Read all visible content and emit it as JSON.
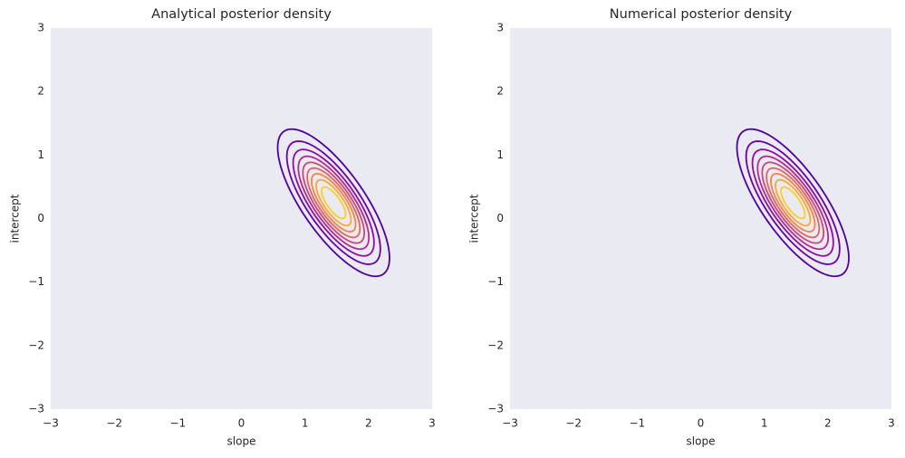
{
  "chart_data": [
    {
      "type": "contour",
      "title": "Analytical posterior density",
      "xlabel": "slope",
      "ylabel": "intercept",
      "xlim": [
        -3,
        3
      ],
      "ylim": [
        -3,
        3
      ],
      "xticks": [
        {
          "value": -3,
          "label": "−3"
        },
        {
          "value": -2,
          "label": "−2"
        },
        {
          "value": -1,
          "label": "−1"
        },
        0,
        1,
        2,
        3
      ],
      "yticks": [
        {
          "value": -3,
          "label": "−3"
        },
        {
          "value": -2,
          "label": "−2"
        },
        {
          "value": -1,
          "label": "−1"
        },
        0,
        1,
        2,
        3
      ],
      "mean": [
        1.45,
        0.25
      ],
      "std": [
        0.41,
        0.54
      ],
      "corr": -0.75,
      "contours": [
        {
          "level": 0.1,
          "color": "#4c02a1"
        },
        {
          "level": 0.2,
          "color": "#6a00a8"
        },
        {
          "level": 0.3,
          "color": "#8f0da4"
        },
        {
          "level": 0.4,
          "color": "#b12a90"
        },
        {
          "level": 0.5,
          "color": "#cc4778"
        },
        {
          "level": 0.6,
          "color": "#e16462"
        },
        {
          "level": 0.7,
          "color": "#f2844b"
        },
        {
          "level": 0.8,
          "color": "#fca636"
        },
        {
          "level": 0.9,
          "color": "#fcce25"
        }
      ]
    },
    {
      "type": "contour",
      "title": "Numerical posterior density",
      "xlabel": "slope",
      "ylabel": "intercept",
      "xlim": [
        -3,
        3
      ],
      "ylim": [
        -3,
        3
      ],
      "xticks": [
        {
          "value": -3,
          "label": "−3"
        },
        {
          "value": -2,
          "label": "−2"
        },
        {
          "value": -1,
          "label": "−1"
        },
        0,
        1,
        2,
        3
      ],
      "yticks": [
        {
          "value": -3,
          "label": "−3"
        },
        {
          "value": -2,
          "label": "−2"
        },
        {
          "value": -1,
          "label": "−1"
        },
        0,
        1,
        2,
        3
      ],
      "mean": [
        1.45,
        0.25
      ],
      "std": [
        0.41,
        0.54
      ],
      "corr": -0.75,
      "contours": [
        {
          "level": 0.1,
          "color": "#4c02a1"
        },
        {
          "level": 0.2,
          "color": "#6a00a8"
        },
        {
          "level": 0.3,
          "color": "#8f0da4"
        },
        {
          "level": 0.4,
          "color": "#b12a90"
        },
        {
          "level": 0.5,
          "color": "#cc4778"
        },
        {
          "level": 0.6,
          "color": "#e16462"
        },
        {
          "level": 0.7,
          "color": "#f2844b"
        },
        {
          "level": 0.8,
          "color": "#fca636"
        },
        {
          "level": 0.9,
          "color": "#fcce25"
        }
      ]
    }
  ]
}
